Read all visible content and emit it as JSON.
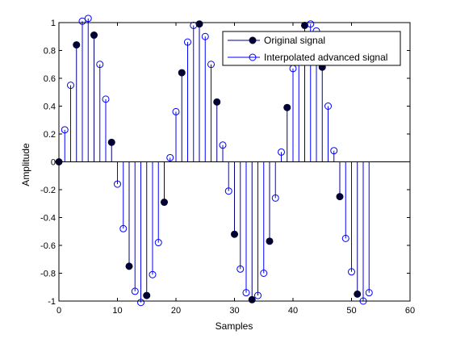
{
  "chart_data": {
    "type": "stem",
    "title": "",
    "xlabel": "Samples",
    "ylabel": "Amplitude",
    "xlim": [
      0,
      60
    ],
    "ylim": [
      -1,
      1
    ],
    "xticks": [
      "0",
      "10",
      "20",
      "30",
      "40",
      "50",
      "60"
    ],
    "yticks": [
      "-1",
      "-0.8",
      "-0.6",
      "-0.4",
      "-0.2",
      "0",
      "0.2",
      "0.4",
      "0.6",
      "0.8",
      "1"
    ],
    "grid": false,
    "legend_position": "top-right",
    "baseline": 0,
    "series": [
      {
        "name": "Original signal",
        "color": "#000080",
        "marker": "filled-circle",
        "x": [
          0,
          3,
          6,
          9,
          12,
          15,
          18,
          21,
          24,
          27,
          30,
          33,
          36,
          39,
          42,
          45,
          48,
          51
        ],
        "values": [
          0,
          0.84,
          0.91,
          0.14,
          -0.75,
          -0.96,
          -0.29,
          0.64,
          0.99,
          0.43,
          -0.52,
          -0.99,
          -0.57,
          0.39,
          0.98,
          0.68,
          -0.25,
          -0.95
        ]
      },
      {
        "name": "Interpolated advanced signal",
        "color": "#0000ff",
        "marker": "open-circle",
        "x": [
          1,
          2,
          4,
          5,
          7,
          8,
          10,
          11,
          13,
          14,
          16,
          17,
          19,
          20,
          22,
          23,
          25,
          26,
          28,
          29,
          31,
          32,
          34,
          35,
          37,
          38,
          40,
          41,
          43,
          44,
          46,
          47,
          49,
          50,
          52,
          53
        ],
        "values": [
          0.23,
          0.55,
          1.01,
          1.03,
          0.7,
          0.45,
          -0.16,
          -0.48,
          -0.93,
          -1.01,
          -0.81,
          -0.58,
          0.03,
          0.36,
          0.86,
          0.98,
          0.9,
          0.7,
          0.12,
          -0.21,
          -0.77,
          -0.94,
          -0.96,
          -0.8,
          -0.26,
          0.07,
          0.67,
          0.84,
          0.99,
          0.94,
          0.4,
          0.08,
          -0.55,
          -0.79,
          -1.0,
          -0.94
        ]
      }
    ]
  }
}
